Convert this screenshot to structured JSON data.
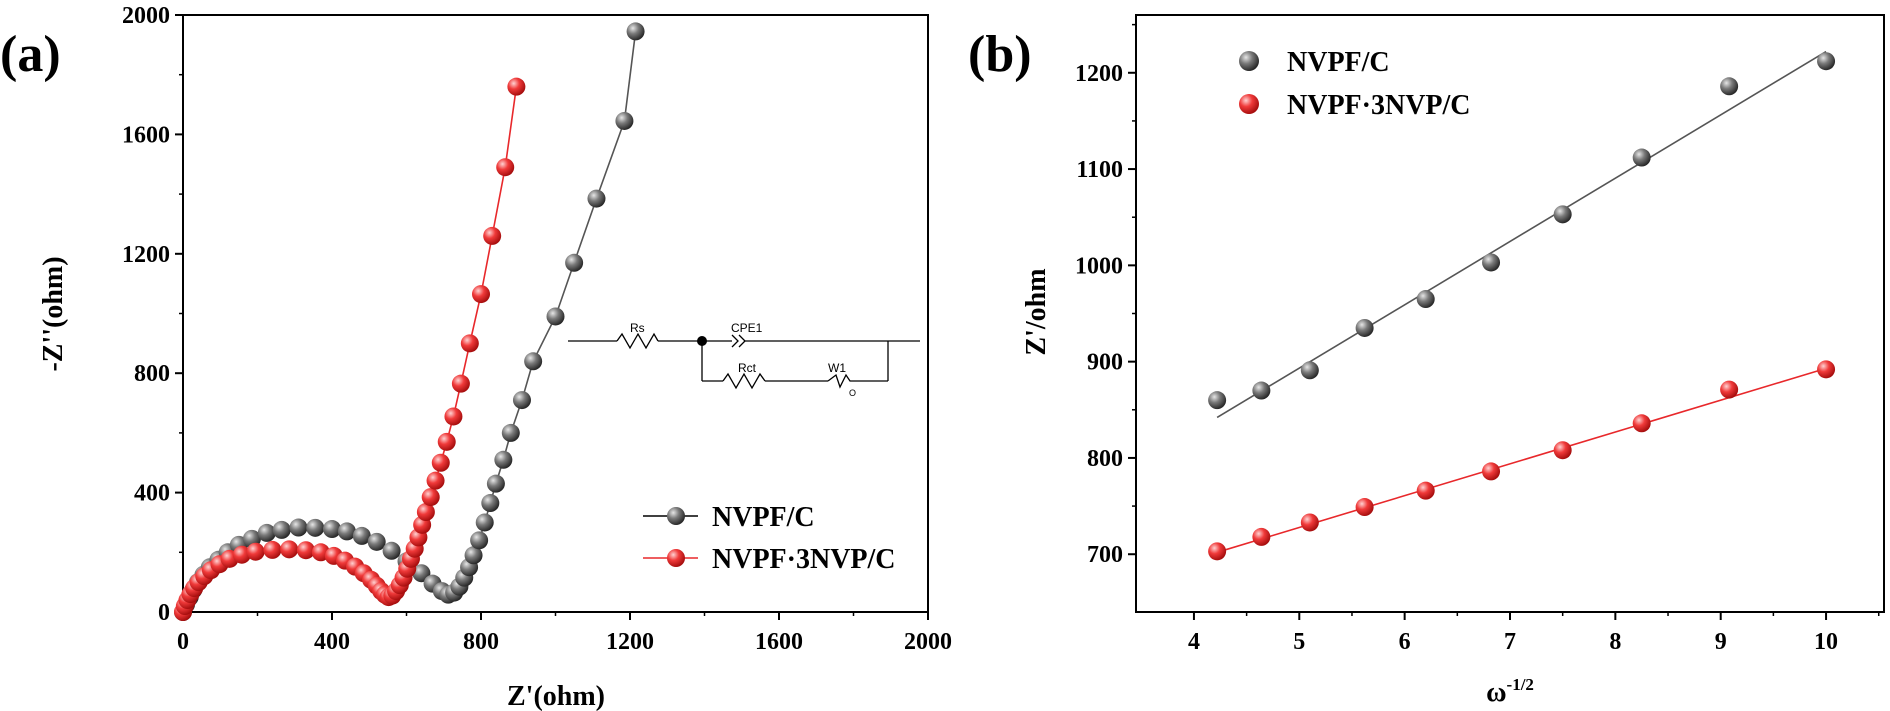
{
  "chart_data": [
    {
      "panel_label": "(a)",
      "type": "scatter",
      "xlabel": "Z'(ohm)",
      "ylabel": "-Z''(ohm)",
      "xlim": [
        0,
        2000
      ],
      "ylim": [
        0,
        2000
      ],
      "xticks": [
        "0",
        "400",
        "800",
        "1200",
        "1600",
        "2000"
      ],
      "yticks": [
        "0",
        "400",
        "800",
        "1200",
        "1600",
        "2000"
      ],
      "grid": false,
      "legend_position": "lower-right",
      "series": [
        {
          "name": "NVPF/C",
          "color": "#555555",
          "points": [
            [
              0,
              0
            ],
            [
              8,
              25
            ],
            [
              18,
              50
            ],
            [
              28,
              75
            ],
            [
              40,
              100
            ],
            [
              55,
              125
            ],
            [
              72,
              150
            ],
            [
              95,
              175
            ],
            [
              120,
              200
            ],
            [
              150,
              225
            ],
            [
              185,
              245
            ],
            [
              225,
              265
            ],
            [
              265,
              275
            ],
            [
              310,
              283
            ],
            [
              355,
              282
            ],
            [
              400,
              278
            ],
            [
              440,
              270
            ],
            [
              480,
              255
            ],
            [
              520,
              235
            ],
            [
              560,
              205
            ],
            [
              600,
              170
            ],
            [
              640,
              130
            ],
            [
              670,
              95
            ],
            [
              695,
              70
            ],
            [
              712,
              58
            ],
            [
              728,
              65
            ],
            [
              742,
              85
            ],
            [
              755,
              115
            ],
            [
              768,
              150
            ],
            [
              780,
              190
            ],
            [
              795,
              240
            ],
            [
              810,
              300
            ],
            [
              825,
              365
            ],
            [
              840,
              430
            ],
            [
              860,
              510
            ],
            [
              880,
              600
            ],
            [
              910,
              710
            ],
            [
              940,
              840
            ],
            [
              1000,
              990
            ],
            [
              1050,
              1170
            ],
            [
              1110,
              1385
            ],
            [
              1185,
              1645
            ],
            [
              1215,
              1945
            ]
          ]
        },
        {
          "name": "NVPF·3NVP/C",
          "color": "#e8282b",
          "points": [
            [
              0,
              0
            ],
            [
              5,
              20
            ],
            [
              12,
              40
            ],
            [
              20,
              60
            ],
            [
              30,
              80
            ],
            [
              42,
              100
            ],
            [
              57,
              120
            ],
            [
              75,
              140
            ],
            [
              98,
              160
            ],
            [
              125,
              178
            ],
            [
              158,
              192
            ],
            [
              195,
              202
            ],
            [
              240,
              208
            ],
            [
              285,
              210
            ],
            [
              330,
              207
            ],
            [
              370,
              200
            ],
            [
              405,
              188
            ],
            [
              435,
              172
            ],
            [
              462,
              152
            ],
            [
              485,
              130
            ],
            [
              505,
              108
            ],
            [
              520,
              88
            ],
            [
              532,
              70
            ],
            [
              542,
              58
            ],
            [
              552,
              50
            ],
            [
              562,
              55
            ],
            [
              572,
              70
            ],
            [
              582,
              90
            ],
            [
              592,
              115
            ],
            [
              602,
              145
            ],
            [
              612,
              178
            ],
            [
              622,
              212
            ],
            [
              632,
              250
            ],
            [
              642,
              292
            ],
            [
              652,
              335
            ],
            [
              665,
              385
            ],
            [
              678,
              440
            ],
            [
              692,
              500
            ],
            [
              708,
              570
            ],
            [
              726,
              655
            ],
            [
              746,
              765
            ],
            [
              770,
              900
            ],
            [
              800,
              1065
            ],
            [
              830,
              1260
            ],
            [
              865,
              1490
            ],
            [
              895,
              1760
            ]
          ]
        }
      ]
    },
    {
      "panel_label": "(b)",
      "type": "scatter",
      "xlabel": "ω⁻¹ᐟ²",
      "xlabel_base": "ω",
      "xlabel_sup": "-1/2",
      "ylabel": "Z'/ohm",
      "xlim": [
        3.45,
        10.55
      ],
      "ylim": [
        640,
        1260
      ],
      "xticks": [
        "4",
        "5",
        "6",
        "7",
        "8",
        "9",
        "10"
      ],
      "yticks": [
        "700",
        "800",
        "900",
        "1000",
        "1100",
        "1200"
      ],
      "grid": false,
      "legend_position": "top-left",
      "series": [
        {
          "name": "NVPF/C",
          "color": "#555555",
          "x": [
            4.22,
            4.64,
            5.1,
            5.62,
            6.2,
            6.82,
            7.5,
            8.25,
            9.08,
            10.0
          ],
          "y": [
            860,
            870,
            891,
            935,
            965,
            1003,
            1053,
            1112,
            1186,
            1212
          ],
          "fit": [
            [
              4.22,
              842
            ],
            [
              10.0,
              1222
            ]
          ]
        },
        {
          "name": "NVPF·3NVP/C",
          "color": "#e8282b",
          "x": [
            4.22,
            4.64,
            5.1,
            5.62,
            6.2,
            6.82,
            7.5,
            8.25,
            9.08,
            10.0
          ],
          "y": [
            703,
            718,
            733,
            749,
            766,
            786,
            808,
            836,
            871,
            892
          ],
          "fit": [
            [
              4.22,
              702
            ],
            [
              10.0,
              893
            ]
          ]
        }
      ]
    }
  ],
  "inset": {
    "labels": [
      "Rs",
      "CPE1",
      "Rct",
      "W1"
    ],
    "w_subscript": "O"
  }
}
